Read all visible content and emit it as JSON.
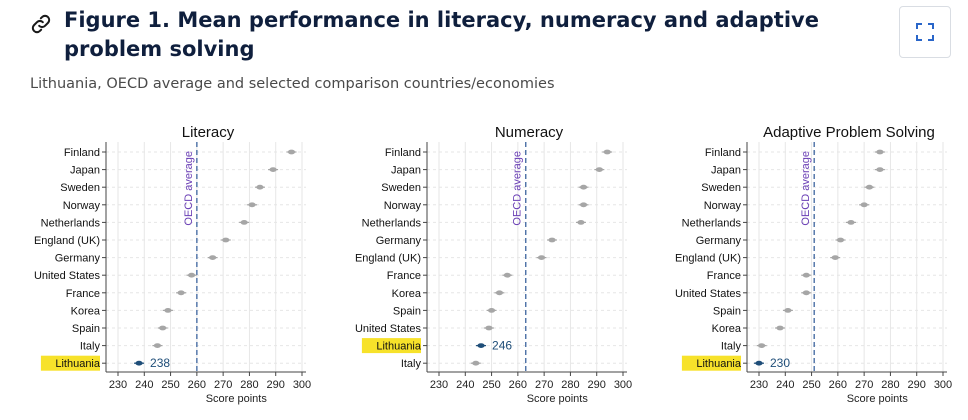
{
  "header": {
    "title": "Figure 1. Mean performance in literacy, numeracy and adaptive problem solving",
    "subtitle": "Lithuania, OECD average and selected comparison countries/economies"
  },
  "icons": {
    "link": "link-icon",
    "expand": "expand-icon"
  },
  "colors": {
    "point": "#a6a6a6",
    "highlight_point": "#1f4e79",
    "oecd_line": "#4a6fa5",
    "oecd_label": "#6a3fb5",
    "highlight_bg": "#f7e22a",
    "label_value": "#1f4e79"
  },
  "chart_data": [
    {
      "type": "scatter",
      "title": "Literacy",
      "xlabel": "Score points",
      "xlim": [
        230,
        300
      ],
      "xticks": [
        230,
        240,
        250,
        260,
        270,
        280,
        290,
        300
      ],
      "oecd_average": 260,
      "oecd_label": "OECD average",
      "highlight": "Lithuania",
      "highlight_label": "238",
      "categories": [
        "Finland",
        "Japan",
        "Sweden",
        "Norway",
        "Netherlands",
        "England (UK)",
        "Germany",
        "United States",
        "France",
        "Korea",
        "Spain",
        "Italy",
        "Lithuania"
      ],
      "values": [
        296,
        289,
        284,
        281,
        278,
        271,
        266,
        258,
        254,
        249,
        247,
        245,
        238
      ],
      "grid": true
    },
    {
      "type": "scatter",
      "title": "Numeracy",
      "xlabel": "Score points",
      "xlim": [
        230,
        300
      ],
      "xticks": [
        230,
        240,
        250,
        260,
        270,
        280,
        290,
        300
      ],
      "oecd_average": 263,
      "oecd_label": "OECD average",
      "highlight": "Lithuania",
      "highlight_label": "246",
      "categories": [
        "Finland",
        "Japan",
        "Sweden",
        "Norway",
        "Netherlands",
        "Germany",
        "England (UK)",
        "France",
        "Korea",
        "Spain",
        "United States",
        "Lithuania",
        "Italy"
      ],
      "values": [
        294,
        291,
        285,
        285,
        284,
        273,
        269,
        256,
        253,
        250,
        249,
        246,
        244
      ],
      "grid": true
    },
    {
      "type": "scatter",
      "title": "Adaptive Problem Solving",
      "xlabel": "Score points",
      "xlim": [
        230,
        300
      ],
      "xticks": [
        230,
        240,
        250,
        260,
        270,
        280,
        290,
        300
      ],
      "oecd_average": 251,
      "oecd_label": "OECD average",
      "highlight": "Lithuania",
      "highlight_label": "230",
      "categories": [
        "Finland",
        "Japan",
        "Sweden",
        "Norway",
        "Netherlands",
        "Germany",
        "England (UK)",
        "France",
        "United States",
        "Spain",
        "Korea",
        "Italy",
        "Lithuania"
      ],
      "values": [
        276,
        276,
        272,
        270,
        265,
        261,
        259,
        248,
        248,
        241,
        238,
        231,
        230
      ],
      "grid": true
    }
  ]
}
